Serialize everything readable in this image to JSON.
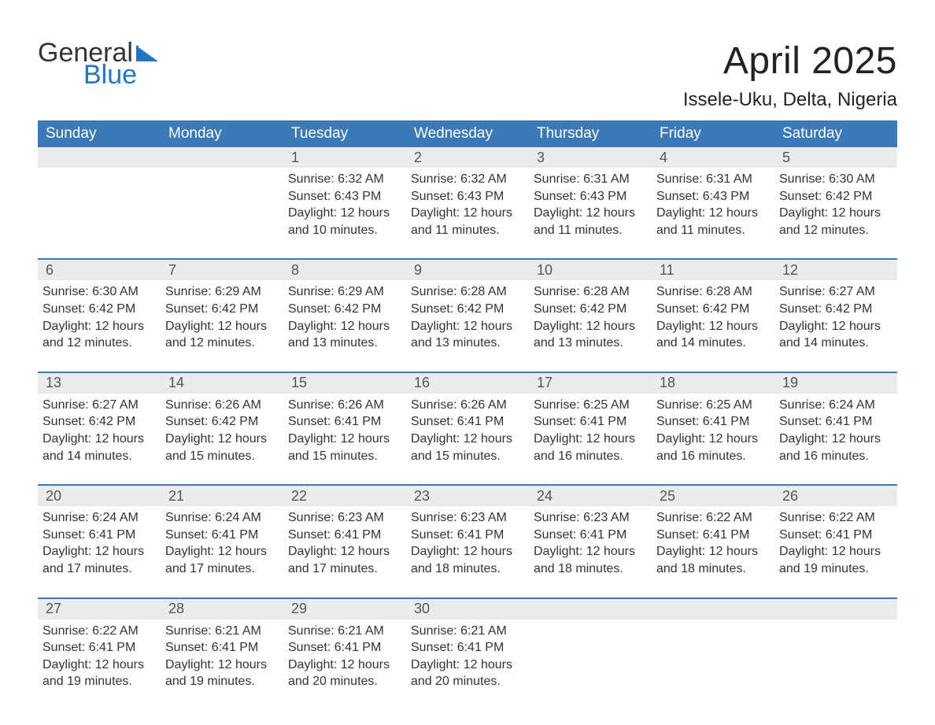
{
  "brand": {
    "general": "General",
    "blue": "Blue",
    "general_color": "#333333",
    "blue_color": "#1f77c5",
    "icon_fill": "#1f77c5"
  },
  "title": "April 2025",
  "location": "Issele-Uku, Delta, Nigeria",
  "colors": {
    "header_bg": "#3b79b7",
    "header_text": "#ffffff",
    "daynum_bg": "#ebebeb",
    "daynum_text": "#555555",
    "body_text": "#333333",
    "row_divider": "#3b79b7",
    "page_bg": "#ffffff"
  },
  "fonts": {
    "title_size_pt": 36,
    "location_size_pt": 18,
    "header_size_pt": 14,
    "daynum_size_pt": 13,
    "body_size_pt": 12
  },
  "weekday_labels": [
    "Sunday",
    "Monday",
    "Tuesday",
    "Wednesday",
    "Thursday",
    "Friday",
    "Saturday"
  ],
  "weeks": [
    [
      {
        "blank": true
      },
      {
        "blank": true
      },
      {
        "day": "1",
        "sunrise": "Sunrise: 6:32 AM",
        "sunset": "Sunset: 6:43 PM",
        "dl1": "Daylight: 12 hours",
        "dl2": "and 10 minutes."
      },
      {
        "day": "2",
        "sunrise": "Sunrise: 6:32 AM",
        "sunset": "Sunset: 6:43 PM",
        "dl1": "Daylight: 12 hours",
        "dl2": "and 11 minutes."
      },
      {
        "day": "3",
        "sunrise": "Sunrise: 6:31 AM",
        "sunset": "Sunset: 6:43 PM",
        "dl1": "Daylight: 12 hours",
        "dl2": "and 11 minutes."
      },
      {
        "day": "4",
        "sunrise": "Sunrise: 6:31 AM",
        "sunset": "Sunset: 6:43 PM",
        "dl1": "Daylight: 12 hours",
        "dl2": "and 11 minutes."
      },
      {
        "day": "5",
        "sunrise": "Sunrise: 6:30 AM",
        "sunset": "Sunset: 6:42 PM",
        "dl1": "Daylight: 12 hours",
        "dl2": "and 12 minutes."
      }
    ],
    [
      {
        "day": "6",
        "sunrise": "Sunrise: 6:30 AM",
        "sunset": "Sunset: 6:42 PM",
        "dl1": "Daylight: 12 hours",
        "dl2": "and 12 minutes."
      },
      {
        "day": "7",
        "sunrise": "Sunrise: 6:29 AM",
        "sunset": "Sunset: 6:42 PM",
        "dl1": "Daylight: 12 hours",
        "dl2": "and 12 minutes."
      },
      {
        "day": "8",
        "sunrise": "Sunrise: 6:29 AM",
        "sunset": "Sunset: 6:42 PM",
        "dl1": "Daylight: 12 hours",
        "dl2": "and 13 minutes."
      },
      {
        "day": "9",
        "sunrise": "Sunrise: 6:28 AM",
        "sunset": "Sunset: 6:42 PM",
        "dl1": "Daylight: 12 hours",
        "dl2": "and 13 minutes."
      },
      {
        "day": "10",
        "sunrise": "Sunrise: 6:28 AM",
        "sunset": "Sunset: 6:42 PM",
        "dl1": "Daylight: 12 hours",
        "dl2": "and 13 minutes."
      },
      {
        "day": "11",
        "sunrise": "Sunrise: 6:28 AM",
        "sunset": "Sunset: 6:42 PM",
        "dl1": "Daylight: 12 hours",
        "dl2": "and 14 minutes."
      },
      {
        "day": "12",
        "sunrise": "Sunrise: 6:27 AM",
        "sunset": "Sunset: 6:42 PM",
        "dl1": "Daylight: 12 hours",
        "dl2": "and 14 minutes."
      }
    ],
    [
      {
        "day": "13",
        "sunrise": "Sunrise: 6:27 AM",
        "sunset": "Sunset: 6:42 PM",
        "dl1": "Daylight: 12 hours",
        "dl2": "and 14 minutes."
      },
      {
        "day": "14",
        "sunrise": "Sunrise: 6:26 AM",
        "sunset": "Sunset: 6:42 PM",
        "dl1": "Daylight: 12 hours",
        "dl2": "and 15 minutes."
      },
      {
        "day": "15",
        "sunrise": "Sunrise: 6:26 AM",
        "sunset": "Sunset: 6:41 PM",
        "dl1": "Daylight: 12 hours",
        "dl2": "and 15 minutes."
      },
      {
        "day": "16",
        "sunrise": "Sunrise: 6:26 AM",
        "sunset": "Sunset: 6:41 PM",
        "dl1": "Daylight: 12 hours",
        "dl2": "and 15 minutes."
      },
      {
        "day": "17",
        "sunrise": "Sunrise: 6:25 AM",
        "sunset": "Sunset: 6:41 PM",
        "dl1": "Daylight: 12 hours",
        "dl2": "and 16 minutes."
      },
      {
        "day": "18",
        "sunrise": "Sunrise: 6:25 AM",
        "sunset": "Sunset: 6:41 PM",
        "dl1": "Daylight: 12 hours",
        "dl2": "and 16 minutes."
      },
      {
        "day": "19",
        "sunrise": "Sunrise: 6:24 AM",
        "sunset": "Sunset: 6:41 PM",
        "dl1": "Daylight: 12 hours",
        "dl2": "and 16 minutes."
      }
    ],
    [
      {
        "day": "20",
        "sunrise": "Sunrise: 6:24 AM",
        "sunset": "Sunset: 6:41 PM",
        "dl1": "Daylight: 12 hours",
        "dl2": "and 17 minutes."
      },
      {
        "day": "21",
        "sunrise": "Sunrise: 6:24 AM",
        "sunset": "Sunset: 6:41 PM",
        "dl1": "Daylight: 12 hours",
        "dl2": "and 17 minutes."
      },
      {
        "day": "22",
        "sunrise": "Sunrise: 6:23 AM",
        "sunset": "Sunset: 6:41 PM",
        "dl1": "Daylight: 12 hours",
        "dl2": "and 17 minutes."
      },
      {
        "day": "23",
        "sunrise": "Sunrise: 6:23 AM",
        "sunset": "Sunset: 6:41 PM",
        "dl1": "Daylight: 12 hours",
        "dl2": "and 18 minutes."
      },
      {
        "day": "24",
        "sunrise": "Sunrise: 6:23 AM",
        "sunset": "Sunset: 6:41 PM",
        "dl1": "Daylight: 12 hours",
        "dl2": "and 18 minutes."
      },
      {
        "day": "25",
        "sunrise": "Sunrise: 6:22 AM",
        "sunset": "Sunset: 6:41 PM",
        "dl1": "Daylight: 12 hours",
        "dl2": "and 18 minutes."
      },
      {
        "day": "26",
        "sunrise": "Sunrise: 6:22 AM",
        "sunset": "Sunset: 6:41 PM",
        "dl1": "Daylight: 12 hours",
        "dl2": "and 19 minutes."
      }
    ],
    [
      {
        "day": "27",
        "sunrise": "Sunrise: 6:22 AM",
        "sunset": "Sunset: 6:41 PM",
        "dl1": "Daylight: 12 hours",
        "dl2": "and 19 minutes."
      },
      {
        "day": "28",
        "sunrise": "Sunrise: 6:21 AM",
        "sunset": "Sunset: 6:41 PM",
        "dl1": "Daylight: 12 hours",
        "dl2": "and 19 minutes."
      },
      {
        "day": "29",
        "sunrise": "Sunrise: 6:21 AM",
        "sunset": "Sunset: 6:41 PM",
        "dl1": "Daylight: 12 hours",
        "dl2": "and 20 minutes."
      },
      {
        "day": "30",
        "sunrise": "Sunrise: 6:21 AM",
        "sunset": "Sunset: 6:41 PM",
        "dl1": "Daylight: 12 hours",
        "dl2": "and 20 minutes."
      },
      {
        "blank": true
      },
      {
        "blank": true
      },
      {
        "blank": true
      }
    ]
  ]
}
